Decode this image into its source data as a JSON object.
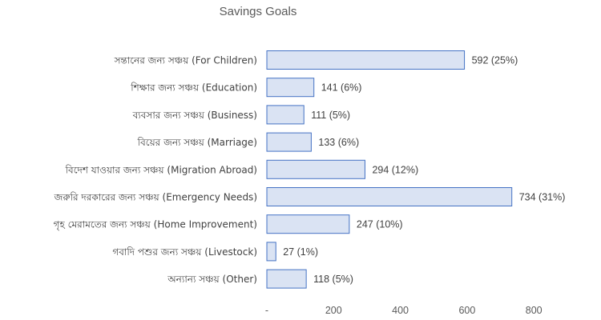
{
  "chart_data": {
    "type": "bar",
    "orientation": "horizontal",
    "title": "Savings Goals",
    "categories": [
      "সন্তানের জন্য সঞ্চয় (For Children)",
      "শিক্ষার জন্য সঞ্চয় (Education)",
      "ব্যবসার জন্য সঞ্চয় (Business)",
      "বিয়ের জন্য সঞ্চয় (Marriage)",
      "বিদেশ যাওয়ার জন্য সঞ্চয় (Migration Abroad)",
      "জরুরি দরকারের জন্য সঞ্চয় (Emergency Needs)",
      "গৃহ মেরামতের জন্য সঞ্চয় (Home Improvement)",
      "গবাদি পশুর জন্য সঞ্চয় (Livestock)",
      "অন্যান্য সঞ্চয় (Other)"
    ],
    "values": [
      592,
      141,
      111,
      133,
      294,
      734,
      247,
      27,
      118
    ],
    "data_labels": [
      "592 (25%)",
      "141 (6%)",
      "111 (5%)",
      "133 (6%)",
      "294 (12%)",
      "734 (31%)",
      "247 (10%)",
      "27 (1%)",
      "118 (5%)"
    ],
    "xlim": [
      0,
      800
    ],
    "x_ticks": [
      0,
      200,
      400,
      600,
      800
    ],
    "x_tick_labels": [
      "-",
      "200",
      "400",
      "600",
      "800"
    ],
    "xlabel": "",
    "ylabel": "",
    "grid": false,
    "legend": "none",
    "colors": {
      "bar_fill": "#dae3f3",
      "bar_stroke": "#4472c4",
      "text": "#404040",
      "tick_text": "#595959",
      "title_text": "#595959"
    }
  }
}
